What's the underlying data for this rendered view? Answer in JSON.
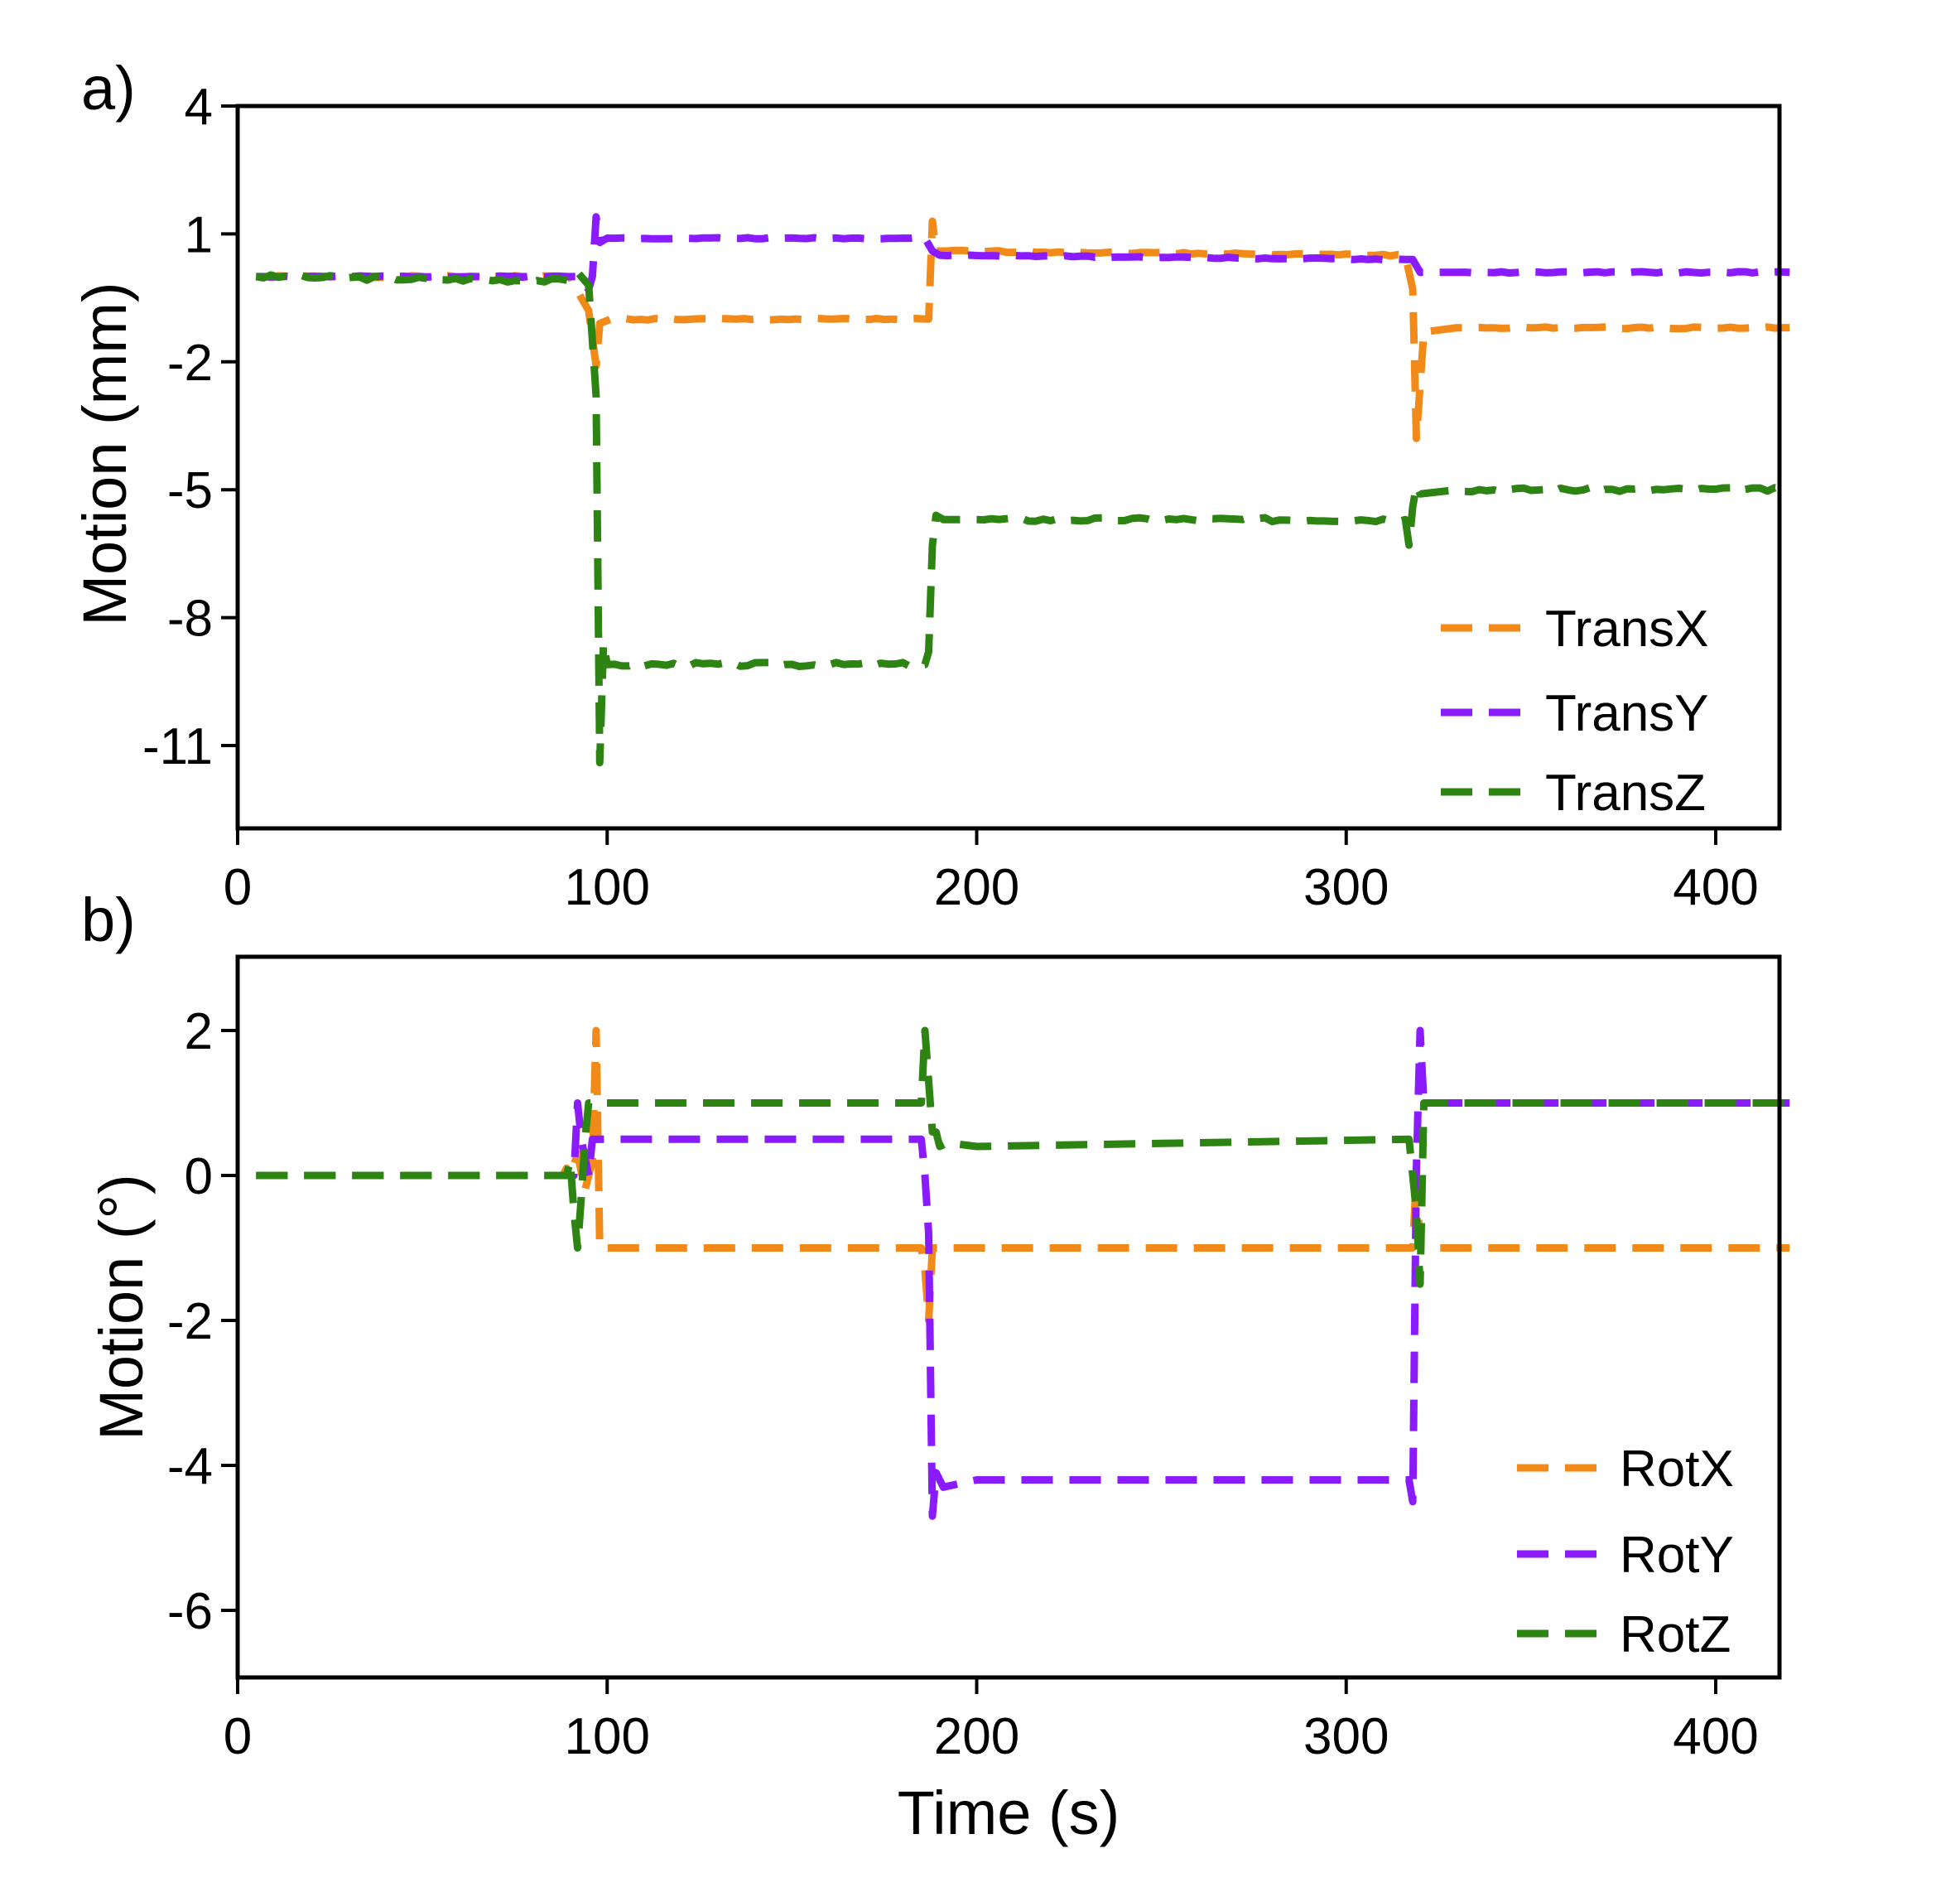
{
  "colors": {
    "x": "#F28A1A",
    "y": "#8A1BFF",
    "z": "#2D8413"
  },
  "chart_data": [
    {
      "type": "line",
      "panel_label": "a)",
      "title": "",
      "xlabel": "",
      "ylabel": "Motion (mm)",
      "xlim": [
        0,
        420
      ],
      "ylim": [
        -13,
        4
      ],
      "xticks": [
        0,
        100,
        200,
        300,
        400
      ],
      "xtick_labels": [
        "0",
        "100",
        "200",
        "300",
        "400"
      ],
      "yticks": [
        4,
        1,
        -2,
        -5,
        -8,
        -11
      ],
      "ytick_labels": [
        "4",
        "1",
        "-2",
        "-5",
        "-8",
        "-11"
      ],
      "legend_position": "bottom-right",
      "series": [
        {
          "name": "TransX",
          "color_key": "x",
          "noise": 0.04,
          "x": [
            5,
            90,
            93,
            95,
            97,
            98,
            101,
            187,
            188,
            189,
            190,
            316,
            318,
            319,
            321,
            330,
            420
          ],
          "y": [
            0,
            0,
            -0.5,
            -0.8,
            -2.1,
            -1.1,
            -1.0,
            -1.0,
            1.3,
            0.6,
            0.6,
            0.5,
            -0.3,
            -3.8,
            -1.3,
            -1.2,
            -1.2
          ]
        },
        {
          "name": "TransY",
          "color_key": "y",
          "noise": 0.03,
          "x": [
            5,
            92,
            95,
            96,
            97,
            98,
            100,
            186,
            188,
            190,
            316,
            318,
            320,
            330,
            420
          ],
          "y": [
            0,
            0,
            -0.3,
            0.0,
            1.4,
            0.8,
            0.9,
            0.9,
            0.6,
            0.5,
            0.4,
            0.4,
            0.1,
            0.1,
            0.1
          ]
        },
        {
          "name": "TransZ",
          "color_key": "z",
          "noise": 0.1,
          "x": [
            5,
            90,
            92,
            95,
            96,
            97,
            98,
            99,
            100,
            186,
            187,
            188,
            189,
            191,
            200,
            316,
            317,
            318,
            319,
            320,
            330,
            420
          ],
          "y": [
            0,
            -0.1,
            0.1,
            -0.2,
            -1.5,
            -2.8,
            -11.4,
            -8.6,
            -9.1,
            -9.1,
            -8.8,
            -6.3,
            -5.6,
            -5.7,
            -5.7,
            -5.7,
            -6.3,
            -5.4,
            -4.9,
            -5.1,
            -5.0,
            -5.0
          ]
        }
      ]
    },
    {
      "type": "line",
      "panel_label": "b)",
      "title": "",
      "xlabel": "Time (s)",
      "ylabel": "Motion (°)",
      "xlim": [
        0,
        420
      ],
      "ylim": [
        -7,
        3
      ],
      "xticks": [
        0,
        100,
        200,
        300,
        400
      ],
      "xtick_labels": [
        "0",
        "100",
        "200",
        "300",
        "400"
      ],
      "yticks": [
        2,
        0,
        -2,
        -4,
        -6
      ],
      "ytick_labels": [
        "2",
        "0",
        "-2",
        "-4",
        "-6"
      ],
      "legend_position": "bottom-right",
      "series": [
        {
          "name": "RotX",
          "color_key": "x",
          "noise": 0.0,
          "x": [
            5,
            88,
            89,
            90,
            92,
            94,
            96,
            97,
            98,
            100,
            185,
            186,
            187,
            188,
            190,
            318,
            319,
            320,
            321,
            420
          ],
          "y": [
            0,
            0,
            0.1,
            0,
            0.3,
            -0.2,
            0.2,
            2.0,
            -1.0,
            -1.0,
            -1.0,
            -1.3,
            -2.0,
            -1.0,
            -1.0,
            -1.0,
            0.0,
            -1.0,
            -1.0,
            -1.0
          ]
        },
        {
          "name": "RotY",
          "color_key": "y",
          "noise": 0.0,
          "x": [
            5,
            88,
            91,
            92,
            93,
            95,
            96,
            97,
            98,
            100,
            185,
            186,
            187,
            188,
            189,
            191,
            200,
            317,
            318,
            319,
            320,
            321,
            420
          ],
          "y": [
            0,
            0,
            0,
            1.0,
            0.5,
            0,
            0.5,
            0.5,
            0.5,
            0.5,
            0.5,
            0,
            -0.8,
            -4.7,
            -4.1,
            -4.3,
            -4.2,
            -4.2,
            -4.5,
            0.1,
            2.0,
            1.0,
            1.0
          ]
        },
        {
          "name": "RotZ",
          "color_key": "z",
          "noise": 0.0,
          "x": [
            5,
            88,
            89,
            90,
            91,
            92,
            93,
            94,
            95,
            96,
            97,
            98,
            100,
            185,
            186,
            187,
            188,
            189,
            190,
            192,
            200,
            317,
            318,
            319,
            320,
            321,
            420
          ],
          "y": [
            0,
            0,
            0,
            0.2,
            -0.5,
            -1.0,
            -0.3,
            0.5,
            1.0,
            1.0,
            1.0,
            1.0,
            1.0,
            1.0,
            2.0,
            1.3,
            0.6,
            0.6,
            0.4,
            0.45,
            0.4,
            0.5,
            0.0,
            -0.5,
            -1.5,
            1.0,
            1.0
          ]
        }
      ]
    }
  ]
}
